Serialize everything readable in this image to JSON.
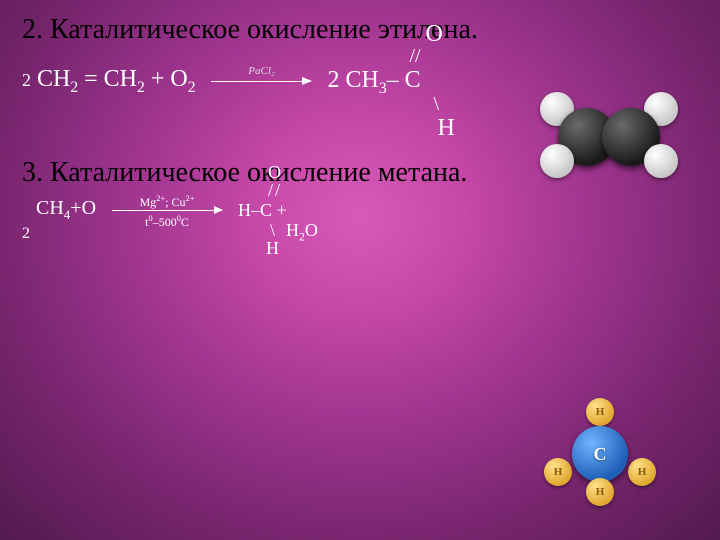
{
  "section2": {
    "title": "2. Каталитическое окисление этилена.",
    "lhs_prefix": "2",
    "lhs": "СН₂ = СН₂ + О₂",
    "catalyst": "PaCl₂",
    "rhs": {
      "o": "О",
      "slash": "//",
      "main": "2 СН₃– С",
      "backslash": "\\",
      "h": "Н"
    }
  },
  "section3": {
    "title": "3. Каталитическое окисление метана.",
    "lhs_main": "CH₄+O",
    "lhs_two": "2",
    "catalyst_top": "Mg²⁺; Cu²⁺",
    "catalyst_bottom": "t⁰–500⁰C",
    "rhs": {
      "o": "O",
      "slash": "//",
      "main": "H–C    +",
      "backslash": "\\",
      "h": "H",
      "h2o": "H₂O"
    }
  },
  "molecule2_label": "C",
  "h_label": "H",
  "colors": {
    "carbon": "#1a1a1a",
    "hydrogen_white": "#e8e8e8",
    "center_blue": "#1f5fb8",
    "h_yellow": "#e0a830",
    "background_center": "#d85ab8",
    "background_edge": "#521a50",
    "title_color": "#000000",
    "text_color": "#ffffff"
  },
  "fonts": {
    "title_size_pt": 21,
    "formula_size_pt": 18,
    "catalyst_size_pt": 9
  }
}
